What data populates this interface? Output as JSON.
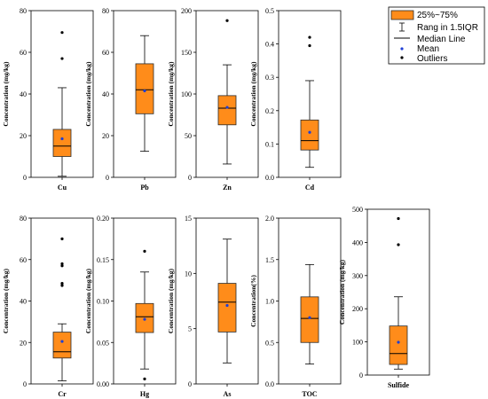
{
  "colors": {
    "box_fill": "#FF8C1A",
    "box_stroke": "#2b2b2b",
    "mean": "#1f3fd6",
    "outlier": "#000000"
  },
  "legend": {
    "items": [
      {
        "key": "box",
        "label": "25%~75%"
      },
      {
        "key": "range",
        "label": "Rang in 1.5IQR"
      },
      {
        "key": "median",
        "label": "Median Line"
      },
      {
        "key": "mean",
        "label": "Mean"
      },
      {
        "key": "outliers",
        "label": "Outliers"
      }
    ]
  },
  "chart_data": [
    {
      "type": "box",
      "xlabel": "Cu",
      "ylabel": "Concentration (mg/kg)",
      "ylim": [
        0,
        80
      ],
      "yticks": [
        0,
        20,
        40,
        60,
        80
      ],
      "whisker_low": 0.5,
      "q1": 10,
      "median": 15,
      "q3": 23,
      "whisker_high": 43,
      "mean": 18.5,
      "outliers": [
        57,
        69.5
      ]
    },
    {
      "type": "box",
      "xlabel": "Pb",
      "ylabel": "Concentration (mg/kg)",
      "ylim": [
        0,
        80
      ],
      "yticks": [
        0,
        20,
        40,
        60,
        80
      ],
      "whisker_low": 12.5,
      "q1": 30.5,
      "median": 42,
      "q3": 54.5,
      "whisker_high": 68,
      "mean": 41.5,
      "outliers": []
    },
    {
      "type": "box",
      "xlabel": "Zn",
      "ylabel": "Concentration (mg/kg)",
      "ylim": [
        0,
        200
      ],
      "yticks": [
        0,
        50,
        100,
        150,
        200
      ],
      "whisker_low": 16,
      "q1": 63,
      "median": 83,
      "q3": 98,
      "whisker_high": 135,
      "mean": 84,
      "outliers": [
        188
      ]
    },
    {
      "type": "box",
      "xlabel": "Cd",
      "ylabel": "Concentration (mg/kg)",
      "ylim": [
        0,
        0.5
      ],
      "yticks": [
        "0.0",
        "0.1",
        "0.2",
        "0.3",
        "0.4",
        "0.5"
      ],
      "whisker_low": 0.03,
      "q1": 0.082,
      "median": 0.11,
      "q3": 0.172,
      "whisker_high": 0.29,
      "mean": 0.135,
      "outliers": [
        0.395,
        0.42
      ]
    },
    {
      "type": "box",
      "xlabel": "Cr",
      "ylabel": "Concentration (mg/kg)",
      "ylim": [
        0,
        80
      ],
      "yticks": [
        0,
        20,
        40,
        60,
        80
      ],
      "whisker_low": 1.5,
      "q1": 12.5,
      "median": 15.5,
      "q3": 25,
      "whisker_high": 29,
      "mean": 20.5,
      "outliers": [
        47.5,
        48.5,
        57,
        58,
        70
      ]
    },
    {
      "type": "box",
      "xlabel": "Hg",
      "ylabel": "Concentration (mg/kg)",
      "ylim": [
        0,
        0.2
      ],
      "yticks": [
        "0.00",
        "0.05",
        "0.10",
        "0.15",
        "0.20"
      ],
      "whisker_low": 0.018,
      "q1": 0.062,
      "median": 0.081,
      "q3": 0.097,
      "whisker_high": 0.135,
      "mean": 0.078,
      "outliers": [
        0.006,
        0.16
      ]
    },
    {
      "type": "box",
      "xlabel": "As",
      "ylabel": "Concentration (mg/kg)",
      "ylim": [
        0,
        15
      ],
      "yticks": [
        0,
        5,
        10,
        15
      ],
      "whisker_low": 1.9,
      "q1": 4.7,
      "median": 7.4,
      "q3": 9.1,
      "whisker_high": 13.1,
      "mean": 7.1,
      "outliers": []
    },
    {
      "type": "box",
      "xlabel": "TOC",
      "ylabel": "Concentration(%)",
      "ylim": [
        0,
        2.0
      ],
      "yticks": [
        "0.0",
        "0.5",
        "1.0",
        "1.5",
        "2.0"
      ],
      "whisker_low": 0.24,
      "q1": 0.5,
      "median": 0.79,
      "q3": 1.05,
      "whisker_high": 1.44,
      "mean": 0.8,
      "outliers": []
    },
    {
      "type": "box",
      "xlabel": "Sulfide",
      "ylabel": "Concentration (mg/kg)",
      "ylim": [
        0,
        500
      ],
      "yticks": [
        0,
        100,
        200,
        300,
        400,
        500
      ],
      "whisker_low": 18,
      "q1": 32,
      "median": 65,
      "q3": 148,
      "whisker_high": 236,
      "mean": 99,
      "outliers": [
        393,
        472
      ]
    }
  ]
}
